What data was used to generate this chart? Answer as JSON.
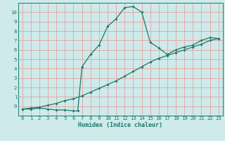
{
  "title": "",
  "xlabel": "Humidex (Indice chaleur)",
  "bg_color": "#ceeaea",
  "grid_color": "#e8a0a0",
  "line_color": "#1a7a6a",
  "line1_x": [
    0,
    1,
    2,
    3,
    4,
    5,
    6,
    6.5,
    7,
    8,
    9,
    10,
    11,
    12,
    13,
    14,
    15,
    16,
    17,
    18,
    19,
    20,
    21,
    22,
    23
  ],
  "line1_y": [
    -0.3,
    -0.3,
    -0.2,
    -0.3,
    -0.4,
    -0.4,
    -0.5,
    -0.5,
    4.2,
    5.5,
    6.5,
    8.5,
    9.3,
    10.5,
    10.6,
    10.0,
    6.8,
    6.2,
    5.5,
    6.0,
    6.3,
    6.5,
    7.0,
    7.3,
    7.2
  ],
  "line2_x": [
    0,
    1,
    2,
    3,
    4,
    5,
    6,
    7,
    8,
    9,
    10,
    11,
    12,
    13,
    14,
    15,
    16,
    17,
    18,
    19,
    20,
    21,
    22,
    23
  ],
  "line2_y": [
    -0.3,
    -0.2,
    -0.1,
    0.1,
    0.3,
    0.6,
    0.8,
    1.1,
    1.5,
    1.9,
    2.3,
    2.7,
    3.2,
    3.7,
    4.2,
    4.7,
    5.1,
    5.4,
    5.7,
    6.0,
    6.3,
    6.6,
    7.0,
    7.2
  ],
  "xlim": [
    -0.5,
    23.5
  ],
  "ylim": [
    -1.0,
    11.0
  ],
  "yticks": [
    0,
    1,
    2,
    3,
    4,
    5,
    6,
    7,
    8,
    9,
    10
  ],
  "xticks": [
    0,
    1,
    2,
    3,
    4,
    5,
    6,
    7,
    8,
    9,
    10,
    11,
    12,
    13,
    14,
    15,
    16,
    17,
    18,
    19,
    20,
    21,
    22,
    23
  ],
  "tick_fontsize": 5.2,
  "xlabel_fontsize": 6.0,
  "marker_size": 2.0,
  "line_width": 0.9
}
